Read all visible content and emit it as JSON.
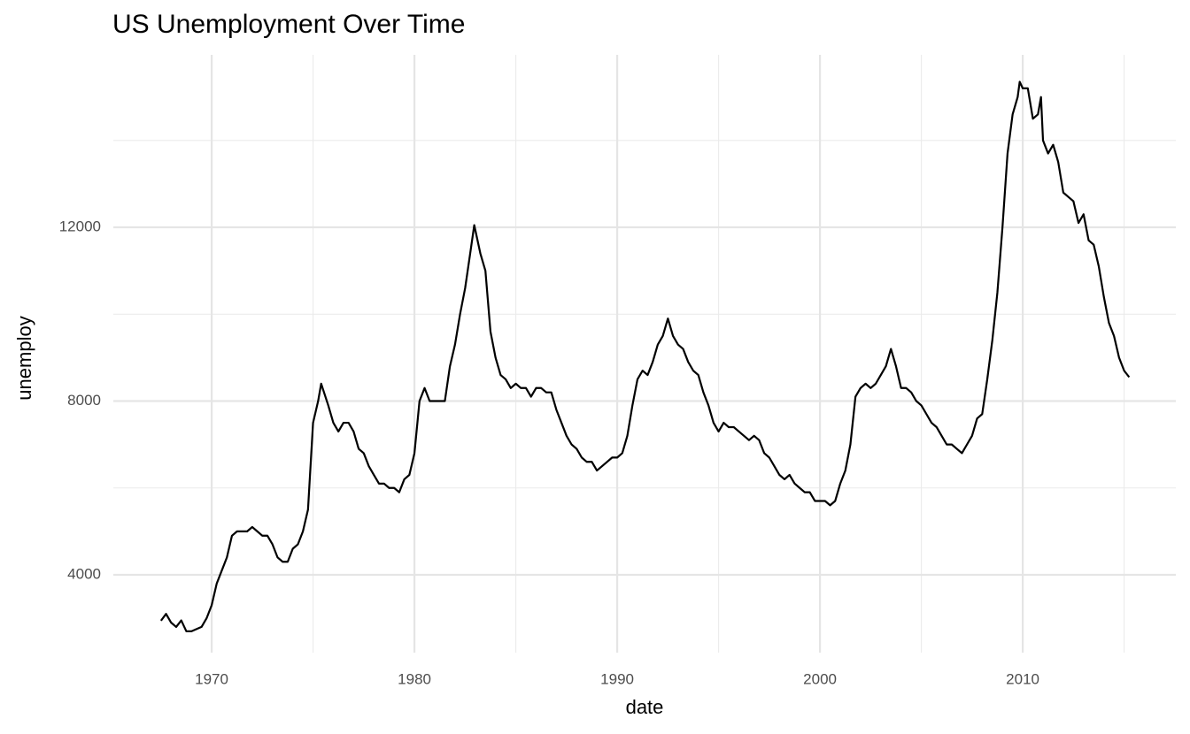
{
  "chart_data": {
    "type": "line",
    "title": "US Unemployment Over Time",
    "x_label": "date",
    "y_label": "unemploy",
    "x": [
      1967.5,
      1967.75,
      1968.0,
      1968.25,
      1968.5,
      1968.75,
      1969.0,
      1969.25,
      1969.5,
      1969.75,
      1970.0,
      1970.25,
      1970.5,
      1970.75,
      1971.0,
      1971.25,
      1971.5,
      1971.75,
      1972.0,
      1972.25,
      1972.5,
      1972.75,
      1973.0,
      1973.25,
      1973.5,
      1973.75,
      1974.0,
      1974.25,
      1974.5,
      1974.75,
      1975.0,
      1975.25,
      1975.4,
      1975.75,
      1976.0,
      1976.25,
      1976.5,
      1976.75,
      1977.0,
      1977.25,
      1977.5,
      1977.75,
      1978.0,
      1978.25,
      1978.5,
      1978.75,
      1979.0,
      1979.25,
      1979.5,
      1979.75,
      1980.0,
      1980.25,
      1980.5,
      1980.75,
      1981.0,
      1981.25,
      1981.5,
      1981.75,
      1982.0,
      1982.25,
      1982.5,
      1982.75,
      1982.95,
      1983.25,
      1983.5,
      1983.75,
      1984.0,
      1984.25,
      1984.5,
      1984.75,
      1985.0,
      1985.25,
      1985.5,
      1985.75,
      1986.0,
      1986.25,
      1986.5,
      1986.75,
      1987.0,
      1987.25,
      1987.5,
      1987.75,
      1988.0,
      1988.25,
      1988.5,
      1988.75,
      1989.0,
      1989.25,
      1989.5,
      1989.75,
      1990.0,
      1990.25,
      1990.5,
      1990.75,
      1991.0,
      1991.25,
      1991.5,
      1991.75,
      1992.0,
      1992.25,
      1992.5,
      1992.75,
      1993.0,
      1993.25,
      1993.5,
      1993.75,
      1994.0,
      1994.25,
      1994.5,
      1994.75,
      1995.0,
      1995.25,
      1995.5,
      1995.75,
      1996.0,
      1996.25,
      1996.5,
      1996.75,
      1997.0,
      1997.25,
      1997.5,
      1997.75,
      1998.0,
      1998.25,
      1998.5,
      1998.75,
      1999.0,
      1999.25,
      1999.5,
      1999.75,
      2000.0,
      2000.25,
      2000.5,
      2000.75,
      2001.0,
      2001.25,
      2001.5,
      2001.75,
      2002.0,
      2002.25,
      2002.5,
      2002.75,
      2003.0,
      2003.25,
      2003.5,
      2003.75,
      2004.0,
      2004.25,
      2004.5,
      2004.75,
      2005.0,
      2005.25,
      2005.5,
      2005.75,
      2006.0,
      2006.25,
      2006.5,
      2006.75,
      2007.0,
      2007.25,
      2007.5,
      2007.75,
      2008.0,
      2008.25,
      2008.5,
      2008.75,
      2009.0,
      2009.25,
      2009.5,
      2009.75,
      2009.85,
      2010.0,
      2010.25,
      2010.5,
      2010.75,
      2010.9,
      2011.0,
      2011.25,
      2011.5,
      2011.75,
      2012.0,
      2012.25,
      2012.5,
      2012.75,
      2013.0,
      2013.25,
      2013.5,
      2013.75,
      2014.0,
      2014.25,
      2014.5,
      2014.75,
      2015.0,
      2015.25
    ],
    "series": [
      {
        "color": "#000000",
        "values": [
          2944,
          3100,
          2900,
          2800,
          2950,
          2700,
          2700,
          2750,
          2800,
          3000,
          3300,
          3800,
          4100,
          4400,
          4900,
          5000,
          5000,
          5000,
          5100,
          5000,
          4900,
          4900,
          4700,
          4400,
          4300,
          4300,
          4600,
          4700,
          5000,
          5500,
          7500,
          8000,
          8400,
          7900,
          7500,
          7300,
          7500,
          7500,
          7300,
          6900,
          6800,
          6500,
          6300,
          6100,
          6100,
          6000,
          6000,
          5900,
          6200,
          6300,
          6800,
          8000,
          8300,
          8000,
          8000,
          8000,
          8000,
          8800,
          9300,
          10000,
          10600,
          11400,
          12050,
          11400,
          11000,
          9600,
          9000,
          8600,
          8500,
          8300,
          8400,
          8300,
          8300,
          8100,
          8300,
          8300,
          8200,
          8200,
          7800,
          7500,
          7200,
          7000,
          6900,
          6700,
          6600,
          6600,
          6400,
          6500,
          6600,
          6700,
          6700,
          6800,
          7200,
          7900,
          8500,
          8700,
          8600,
          8900,
          9300,
          9500,
          9900,
          9500,
          9300,
          9200,
          8900,
          8700,
          8600,
          8200,
          7900,
          7500,
          7300,
          7500,
          7400,
          7400,
          7300,
          7200,
          7100,
          7200,
          7100,
          6800,
          6700,
          6500,
          6300,
          6200,
          6300,
          6100,
          6000,
          5900,
          5900,
          5700,
          5700,
          5700,
          5600,
          5700,
          6100,
          6400,
          7000,
          8100,
          8300,
          8400,
          8300,
          8400,
          8600,
          8800,
          9200,
          8800,
          8300,
          8300,
          8200,
          8000,
          7900,
          7700,
          7500,
          7400,
          7200,
          7000,
          7000,
          6900,
          6800,
          7000,
          7200,
          7600,
          7700,
          8500,
          9400,
          10500,
          12000,
          13700,
          14600,
          15000,
          15350,
          15200,
          15200,
          14500,
          14600,
          15000,
          14000,
          13700,
          13900,
          13500,
          12800,
          12700,
          12600,
          12100,
          12300,
          11700,
          11600,
          11100,
          10400,
          9800,
          9500,
          9000,
          8700,
          8550
        ]
      }
    ],
    "xlim": [
      1965.15,
      2017.55
    ],
    "ylim": [
      2208,
      15971
    ],
    "xticks": [
      1970,
      1980,
      1990,
      2000,
      2010
    ],
    "yticks": [
      4000,
      8000,
      12000
    ],
    "x_minor_grid": [
      1975,
      1985,
      1995,
      2005,
      2015
    ],
    "y_minor_grid": [
      6000,
      10000,
      14000
    ],
    "grid": true
  }
}
